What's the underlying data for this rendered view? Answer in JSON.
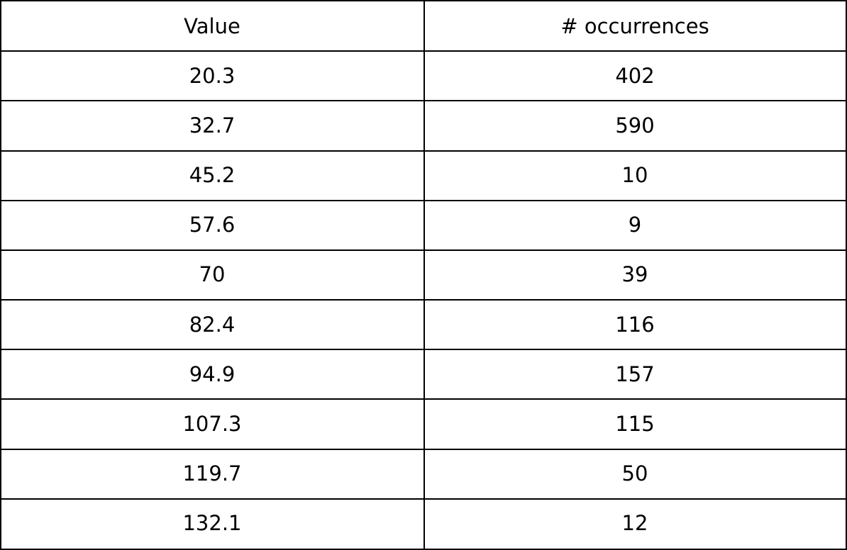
{
  "chart_data": {
    "type": "table",
    "columns": [
      "Value",
      "# occurrences"
    ],
    "rows": [
      [
        "20.3",
        "402"
      ],
      [
        "32.7",
        "590"
      ],
      [
        "45.2",
        "10"
      ],
      [
        "57.6",
        "9"
      ],
      [
        "70",
        "39"
      ],
      [
        "82.4",
        "116"
      ],
      [
        "94.9",
        "157"
      ],
      [
        "107.3",
        "115"
      ],
      [
        "119.7",
        "50"
      ],
      [
        "132.1",
        "12"
      ]
    ]
  }
}
